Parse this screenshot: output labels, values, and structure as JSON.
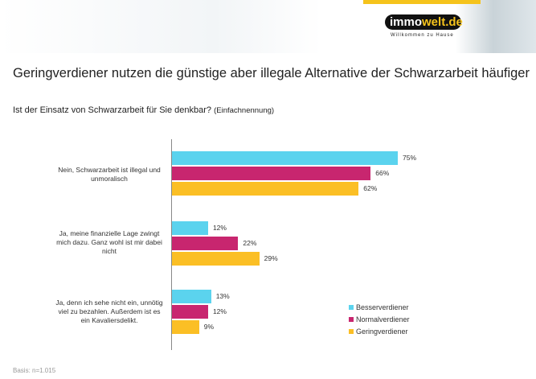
{
  "header": {
    "logo_left": "immo",
    "logo_right": "welt.de",
    "tagline": "Willkommen zu Hause"
  },
  "title": "Geringverdiener nutzen die günstige aber illegale Alternative der Schwarzarbeit häufiger",
  "question": "Ist der Einsatz von Schwarzarbeit für Sie denkbar?",
  "question_note": "(Einfachnennung)",
  "basis": "Basis: n=1.015",
  "chart_data": {
    "type": "bar",
    "orientation": "horizontal",
    "xlim": [
      0,
      100
    ],
    "legend": "bottom-right",
    "grid": false,
    "categories": [
      "Nein, Schwarzarbeit ist illegal und unmoralisch",
      "Ja, meine finanzielle Lage zwingt mich dazu. Ganz wohl ist mir dabei nicht",
      "Ja, denn ich sehe nicht ein, unnötig viel zu bezahlen. Außerdem ist es ein Kavaliersdelikt."
    ],
    "series": [
      {
        "name": "Besserverdiener",
        "color": "#5bd3ee",
        "values": [
          75,
          12,
          13
        ]
      },
      {
        "name": "Normalverdiener",
        "color": "#c8266f",
        "values": [
          66,
          22,
          12
        ]
      },
      {
        "name": "Geringverdiener",
        "color": "#fbbf25",
        "values": [
          62,
          29,
          9
        ]
      }
    ]
  }
}
